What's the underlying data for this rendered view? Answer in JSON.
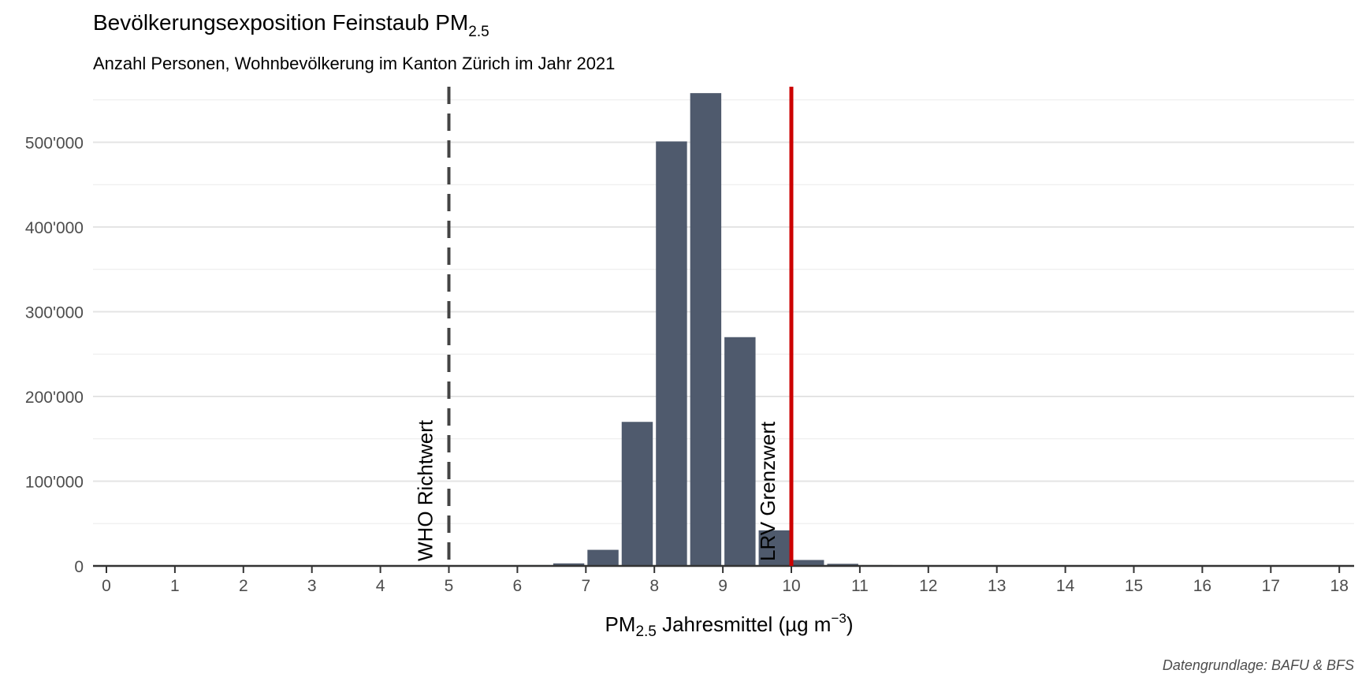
{
  "chart_data": {
    "type": "bar",
    "title": "Bevölkerungsexposition Feinstaub PM",
    "title_subscript": "2.5",
    "subtitle": "Anzahl Personen, Wohnbevölkerung im Kanton Zürich im Jahr 2021",
    "xlabel_prefix": "PM",
    "xlabel_subscript": "2.5",
    "xlabel_main": " Jahresmittel (µg m",
    "xlabel_superscript": "−3",
    "xlabel_suffix": ")",
    "caption": "Datengrundlage: BAFU & BFS",
    "xlim": [
      -0.15,
      18.2
    ],
    "ylim": [
      0,
      560000
    ],
    "bin_width": 0.5,
    "x": [
      6.25,
      6.75,
      7.25,
      7.75,
      8.25,
      8.75,
      9.25,
      9.75,
      10.25,
      10.75,
      11.25
    ],
    "values": [
      1000,
      3000,
      19000,
      170000,
      501000,
      558000,
      270000,
      42000,
      7000,
      2500,
      1000
    ],
    "x_ticks": [
      0,
      1,
      2,
      3,
      4,
      5,
      6,
      7,
      8,
      9,
      10,
      11,
      12,
      13,
      14,
      15,
      16,
      17,
      18
    ],
    "y_ticks": [
      0,
      100000,
      200000,
      300000,
      400000,
      500000
    ],
    "y_tick_labels": [
      "0",
      "100'000",
      "200'000",
      "300'000",
      "400'000",
      "500'000"
    ],
    "reference_lines": [
      {
        "x": 5,
        "label": "WHO Richtwert",
        "style": "dashed",
        "color": "#444444"
      },
      {
        "x": 10,
        "label": "LRV Grenzwert",
        "style": "solid",
        "color": "#cc0000"
      }
    ],
    "bar_color": "#4f5a6d",
    "grid": true,
    "legend": "none"
  }
}
